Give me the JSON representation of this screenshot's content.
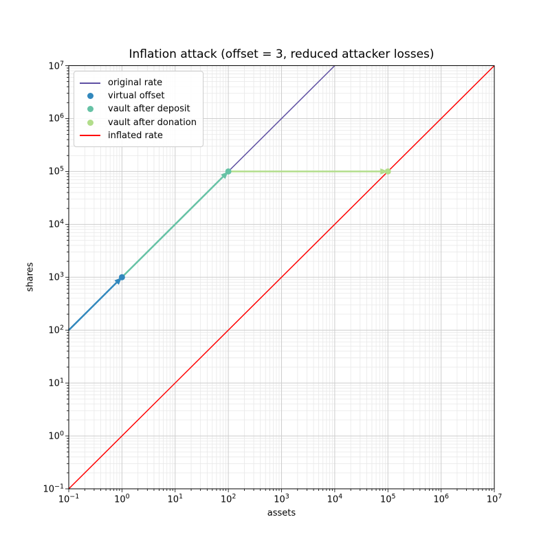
{
  "figure": {
    "background": "#ffffff",
    "text_color": "#000000",
    "spine_color": "#000000",
    "grid_major_color": "#cdcdcd",
    "grid_minor_color": "#e8e8e8"
  },
  "chart_data": {
    "type": "line",
    "title": "Inflation attack (offset = 3, reduced attacker losses)",
    "xlabel": "assets",
    "ylabel": "shares",
    "xscale": "log",
    "yscale": "log",
    "xlim": [
      0.1,
      10000000
    ],
    "ylim": [
      0.1,
      10000000
    ],
    "x_tick_exponents": [
      -1,
      0,
      1,
      2,
      3,
      4,
      5,
      6,
      7
    ],
    "y_tick_exponents": [
      -1,
      0,
      1,
      2,
      3,
      4,
      5,
      6,
      7
    ],
    "grid": {
      "major": true,
      "minor": true
    },
    "legend_position": "upper-left",
    "series": [
      {
        "name": "original rate",
        "type": "line",
        "color": "#5e4fa2",
        "linewidth": 1.5,
        "points": [
          [
            0.1,
            100
          ],
          [
            10000,
            10000000
          ]
        ]
      },
      {
        "name": "virtual offset",
        "type": "scatter",
        "color": "#3288bd",
        "markersize": 9,
        "points": [
          [
            1,
            1000
          ]
        ]
      },
      {
        "name": "vault after deposit",
        "type": "scatter",
        "color": "#66c2a5",
        "markersize": 9,
        "points": [
          [
            100,
            100000
          ]
        ]
      },
      {
        "name": "vault after donation",
        "type": "scatter",
        "color": "#b2dd8b",
        "markersize": 9,
        "points": [
          [
            100000,
            100000
          ]
        ]
      },
      {
        "name": "inflated rate",
        "type": "line",
        "color": "#ff0000",
        "linewidth": 1.5,
        "points": [
          [
            0.1,
            0.1
          ],
          [
            10000000,
            10000000
          ]
        ]
      }
    ],
    "arrows": [
      {
        "from": [
          0.1,
          100
        ],
        "to": [
          1,
          1000
        ],
        "color": "#3288bd"
      },
      {
        "from": [
          1,
          1000
        ],
        "to": [
          100,
          100000
        ],
        "color": "#66c2a5"
      },
      {
        "from": [
          100,
          100000
        ],
        "to": [
          100000,
          100000
        ],
        "color": "#b2dd8b"
      }
    ]
  }
}
